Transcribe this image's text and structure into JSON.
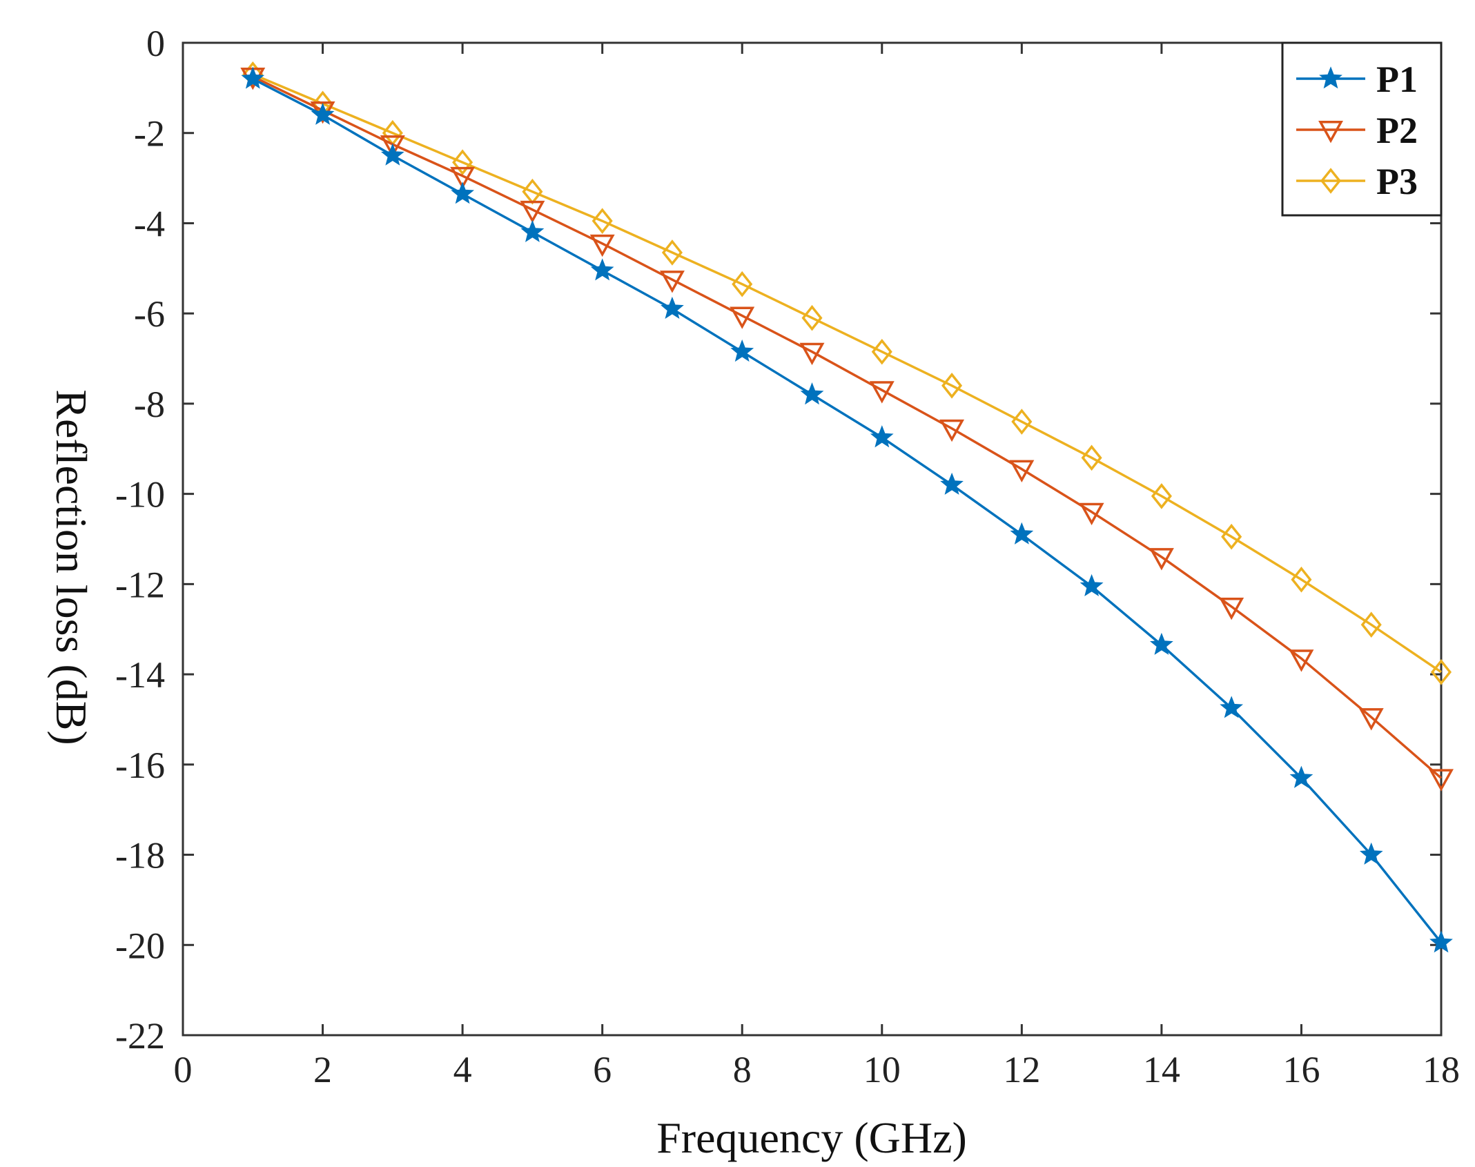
{
  "chart_data": {
    "type": "line",
    "title": "",
    "xlabel": "Frequency (GHz)",
    "ylabel": "Reflection loss (dB)",
    "xlim": [
      0,
      18
    ],
    "ylim": [
      -22,
      0
    ],
    "xticks": [
      "0",
      "2",
      "4",
      "6",
      "8",
      "10",
      "12",
      "14",
      "16",
      "18"
    ],
    "yticks": [
      "0",
      "-2",
      "-4",
      "-6",
      "-8",
      "-10",
      "-12",
      "-14",
      "-16",
      "-18",
      "-20",
      "-22"
    ],
    "legend_position": "top-right",
    "grid": false,
    "x": [
      1,
      2,
      3,
      4,
      5,
      6,
      7,
      8,
      9,
      10,
      11,
      12,
      13,
      14,
      15,
      16,
      17,
      18
    ],
    "series": [
      {
        "name": "P1",
        "marker": "star",
        "color": "#0072BD",
        "values": [
          -0.8,
          -1.6,
          -2.5,
          -3.35,
          -4.2,
          -5.05,
          -5.9,
          -6.85,
          -7.8,
          -8.75,
          -9.8,
          -10.9,
          -12.05,
          -13.35,
          -14.75,
          -16.3,
          -18.0,
          -19.95
        ]
      },
      {
        "name": "P2",
        "marker": "triangle-down",
        "color": "#D95319",
        "values": [
          -0.75,
          -1.5,
          -2.25,
          -2.95,
          -3.7,
          -4.45,
          -5.25,
          -6.05,
          -6.85,
          -7.7,
          -8.55,
          -9.45,
          -10.4,
          -11.4,
          -12.5,
          -13.65,
          -14.95,
          -16.3
        ]
      },
      {
        "name": "P3",
        "marker": "diamond",
        "color": "#EDB120",
        "values": [
          -0.7,
          -1.35,
          -2.0,
          -2.65,
          -3.3,
          -3.95,
          -4.65,
          -5.35,
          -6.1,
          -6.85,
          -7.6,
          -8.4,
          -9.2,
          -10.05,
          -10.95,
          -11.9,
          -12.9,
          -13.95
        ]
      }
    ]
  }
}
